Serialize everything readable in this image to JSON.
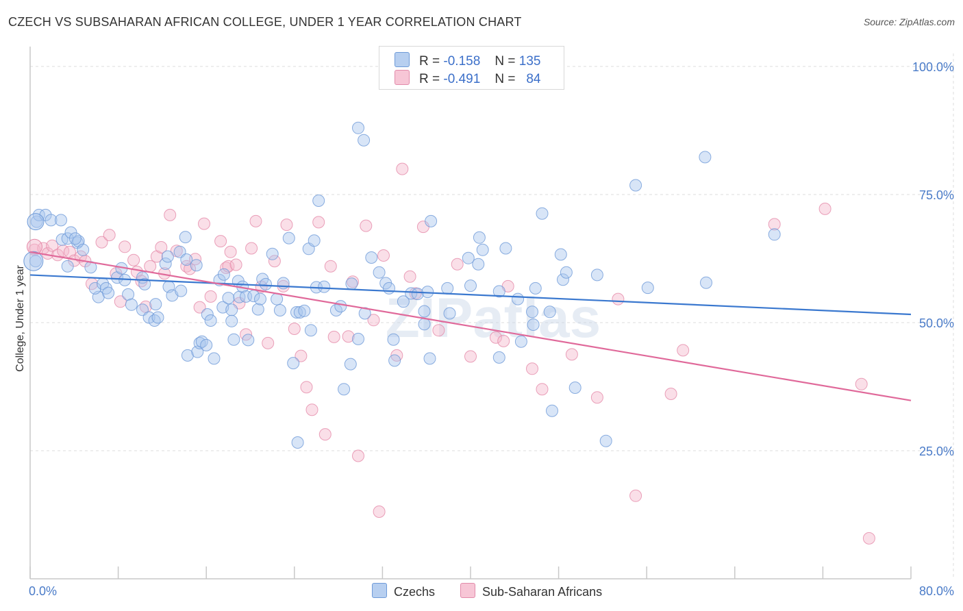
{
  "header": {
    "title": "CZECH VS SUBSAHARAN AFRICAN COLLEGE, UNDER 1 YEAR CORRELATION CHART",
    "source": "Source: ZipAtlas.com"
  },
  "legend": {
    "rows": [
      {
        "r_label": "R =",
        "r_value": "-0.158",
        "n_label": "N =",
        "n_value": "135"
      },
      {
        "r_label": "R =",
        "r_value": "-0.491",
        "n_label": "N =",
        "n_value": "84"
      }
    ]
  },
  "watermark": "ZIPatlas",
  "colors": {
    "czech": "#4a86d4",
    "czech_fill": "#a9c6ee",
    "african": "#e06b94",
    "african_fill": "#f4b8cc",
    "tick": "#4a7bc8"
  },
  "chart_data": {
    "type": "scatter",
    "title": "CZECH VS SUBSAHARAN AFRICAN COLLEGE, UNDER 1 YEAR CORRELATION CHART",
    "xlabel": "",
    "ylabel": "College, Under 1 year",
    "xlim": [
      0,
      80
    ],
    "ylim": [
      0,
      105
    ],
    "x_tick_labels": [
      "0.0%",
      "80.0%"
    ],
    "y_ticks": [
      25,
      50,
      75,
      100
    ],
    "y_tick_labels": [
      "25.0%",
      "50.0%",
      "75.0%",
      "100.0%"
    ],
    "grid": true,
    "legend_position": "bottom",
    "series": [
      {
        "name": "Czechs",
        "color": "#4a86d4",
        "trend": {
          "x": [
            0,
            80
          ],
          "y": [
            59.3,
            51.6
          ]
        },
        "points": [
          [
            0.6,
            69.7
          ],
          [
            0.8,
            71.0
          ],
          [
            1.4,
            71.0
          ],
          [
            1.9,
            70.0
          ],
          [
            2.8,
            70.0
          ],
          [
            2.9,
            66.2
          ],
          [
            3.4,
            66.4
          ],
          [
            3.7,
            67.6
          ],
          [
            4.3,
            65.6
          ],
          [
            4.4,
            65.9
          ],
          [
            3.4,
            61.0
          ],
          [
            4.1,
            66.4
          ],
          [
            4.8,
            64.2
          ],
          [
            5.5,
            60.8
          ],
          [
            6.2,
            55.0
          ],
          [
            5.9,
            56.7
          ],
          [
            6.6,
            57.6
          ],
          [
            6.9,
            56.7
          ],
          [
            7.1,
            55.8
          ],
          [
            7.9,
            58.8
          ],
          [
            8.3,
            60.6
          ],
          [
            8.6,
            58.3
          ],
          [
            8.9,
            55.5
          ],
          [
            9.2,
            53.5
          ],
          [
            10.2,
            58.8
          ],
          [
            10.4,
            57.5
          ],
          [
            10.2,
            52.5
          ],
          [
            10.8,
            51.0
          ],
          [
            11.3,
            50.4
          ],
          [
            11.4,
            53.6
          ],
          [
            11.6,
            51.0
          ],
          [
            12.3,
            61.5
          ],
          [
            12.5,
            62.9
          ],
          [
            12.6,
            57.0
          ],
          [
            12.9,
            55.3
          ],
          [
            13.6,
            63.8
          ],
          [
            13.7,
            56.2
          ],
          [
            14.2,
            62.3
          ],
          [
            14.3,
            43.6
          ],
          [
            14.1,
            66.7
          ],
          [
            15.1,
            61.2
          ],
          [
            15.2,
            44.3
          ],
          [
            15.4,
            46.0
          ],
          [
            15.6,
            46.3
          ],
          [
            16.0,
            45.6
          ],
          [
            16.1,
            51.6
          ],
          [
            16.4,
            50.4
          ],
          [
            16.7,
            43.0
          ],
          [
            17.2,
            58.3
          ],
          [
            17.5,
            53.0
          ],
          [
            17.6,
            59.4
          ],
          [
            18.0,
            54.8
          ],
          [
            18.3,
            52.5
          ],
          [
            18.3,
            50.3
          ],
          [
            18.5,
            46.7
          ],
          [
            18.9,
            58.1
          ],
          [
            19.0,
            55.0
          ],
          [
            19.3,
            57.0
          ],
          [
            19.6,
            55.1
          ],
          [
            19.8,
            46.6
          ],
          [
            20.3,
            55.2
          ],
          [
            20.7,
            52.6
          ],
          [
            20.9,
            54.6
          ],
          [
            21.1,
            58.5
          ],
          [
            21.4,
            57.5
          ],
          [
            22.0,
            63.4
          ],
          [
            22.4,
            54.6
          ],
          [
            22.7,
            52.4
          ],
          [
            23.0,
            57.7
          ],
          [
            23.5,
            66.5
          ],
          [
            23.9,
            42.1
          ],
          [
            24.2,
            52.0
          ],
          [
            24.5,
            52.0
          ],
          [
            24.3,
            26.6
          ],
          [
            24.9,
            52.3
          ],
          [
            25.3,
            64.4
          ],
          [
            25.5,
            48.5
          ],
          [
            25.8,
            66.0
          ],
          [
            26.0,
            56.9
          ],
          [
            26.2,
            73.8
          ],
          [
            26.7,
            57.0
          ],
          [
            27.8,
            52.4
          ],
          [
            28.2,
            53.2
          ],
          [
            28.5,
            37.0
          ],
          [
            29.2,
            57.6
          ],
          [
            29.8,
            88.0
          ],
          [
            30.3,
            85.6
          ],
          [
            29.1,
            41.9
          ],
          [
            29.8,
            46.8
          ],
          [
            30.4,
            51.8
          ],
          [
            31.0,
            62.7
          ],
          [
            31.7,
            59.8
          ],
          [
            32.3,
            57.7
          ],
          [
            32.6,
            56.7
          ],
          [
            33.0,
            46.7
          ],
          [
            33.1,
            42.6
          ],
          [
            33.9,
            54.1
          ],
          [
            34.6,
            55.7
          ],
          [
            35.2,
            55.6
          ],
          [
            35.8,
            52.2
          ],
          [
            35.8,
            49.7
          ],
          [
            36.4,
            69.8
          ],
          [
            36.1,
            56.0
          ],
          [
            36.3,
            43.0
          ],
          [
            37.9,
            56.7
          ],
          [
            38.1,
            51.8
          ],
          [
            39.8,
            62.6
          ],
          [
            40.0,
            57.2
          ],
          [
            40.7,
            61.4
          ],
          [
            41.1,
            64.2
          ],
          [
            40.8,
            66.6
          ],
          [
            42.6,
            56.1
          ],
          [
            42.6,
            43.2
          ],
          [
            43.2,
            64.5
          ],
          [
            44.3,
            54.6
          ],
          [
            44.6,
            46.3
          ],
          [
            45.6,
            52.1
          ],
          [
            45.7,
            49.6
          ],
          [
            45.9,
            56.7
          ],
          [
            46.5,
            71.3
          ],
          [
            47.2,
            52.1
          ],
          [
            47.4,
            32.8
          ],
          [
            48.2,
            63.3
          ],
          [
            48.4,
            58.4
          ],
          [
            48.7,
            59.8
          ],
          [
            49.5,
            37.3
          ],
          [
            51.5,
            59.3
          ],
          [
            52.3,
            26.9
          ],
          [
            55.0,
            76.8
          ],
          [
            56.1,
            56.8
          ],
          [
            61.3,
            82.3
          ],
          [
            61.4,
            57.8
          ],
          [
            67.6,
            67.2
          ],
          [
            0.5,
            62.0
          ]
        ]
      },
      {
        "name": "Sub-Saharan Africans",
        "color": "#e06b94",
        "trend": {
          "x": [
            0,
            80
          ],
          "y": [
            63.8,
            34.8
          ]
        },
        "points": [
          [
            0.4,
            64.2
          ],
          [
            1.2,
            64.5
          ],
          [
            1.6,
            63.5
          ],
          [
            2.0,
            65.0
          ],
          [
            2.5,
            63.2
          ],
          [
            3.0,
            64.0
          ],
          [
            3.6,
            63.8
          ],
          [
            4.0,
            62.1
          ],
          [
            4.6,
            62.9
          ],
          [
            5.0,
            62.0
          ],
          [
            5.6,
            57.6
          ],
          [
            6.5,
            65.7
          ],
          [
            7.2,
            67.1
          ],
          [
            7.8,
            59.6
          ],
          [
            8.2,
            54.1
          ],
          [
            8.6,
            64.8
          ],
          [
            9.4,
            62.2
          ],
          [
            9.7,
            59.9
          ],
          [
            10.1,
            58.1
          ],
          [
            10.5,
            53.1
          ],
          [
            10.9,
            61.0
          ],
          [
            11.5,
            62.9
          ],
          [
            11.9,
            64.7
          ],
          [
            12.2,
            59.6
          ],
          [
            12.7,
            71.0
          ],
          [
            13.3,
            64.0
          ],
          [
            14.2,
            61.0
          ],
          [
            14.5,
            60.5
          ],
          [
            15.0,
            62.4
          ],
          [
            15.4,
            53.0
          ],
          [
            15.8,
            69.3
          ],
          [
            16.4,
            55.1
          ],
          [
            17.3,
            65.9
          ],
          [
            17.8,
            60.7
          ],
          [
            18.0,
            61.0
          ],
          [
            18.2,
            63.8
          ],
          [
            18.7,
            61.3
          ],
          [
            19.0,
            53.8
          ],
          [
            19.6,
            47.7
          ],
          [
            20.1,
            64.5
          ],
          [
            20.5,
            69.8
          ],
          [
            21.0,
            57.0
          ],
          [
            21.6,
            46.0
          ],
          [
            22.2,
            62.0
          ],
          [
            23.0,
            57.1
          ],
          [
            23.3,
            69.1
          ],
          [
            24.0,
            48.8
          ],
          [
            24.6,
            43.5
          ],
          [
            25.1,
            37.4
          ],
          [
            25.6,
            33.0
          ],
          [
            26.2,
            69.6
          ],
          [
            26.8,
            28.2
          ],
          [
            27.3,
            61.0
          ],
          [
            27.6,
            47.2
          ],
          [
            28.9,
            47.3
          ],
          [
            29.3,
            58.0
          ],
          [
            29.8,
            24.0
          ],
          [
            30.5,
            68.9
          ],
          [
            31.2,
            50.5
          ],
          [
            31.7,
            13.1
          ],
          [
            32.1,
            63.1
          ],
          [
            33.3,
            43.6
          ],
          [
            33.8,
            80.0
          ],
          [
            34.5,
            59.0
          ],
          [
            35.0,
            55.7
          ],
          [
            35.7,
            68.7
          ],
          [
            37.1,
            48.5
          ],
          [
            38.8,
            61.4
          ],
          [
            40.0,
            43.4
          ],
          [
            42.3,
            47.1
          ],
          [
            43.0,
            46.4
          ],
          [
            43.4,
            57.1
          ],
          [
            45.6,
            41.0
          ],
          [
            46.5,
            37.0
          ],
          [
            49.2,
            43.8
          ],
          [
            51.5,
            35.4
          ],
          [
            53.4,
            54.6
          ],
          [
            55.0,
            16.2
          ],
          [
            58.2,
            36.1
          ],
          [
            59.3,
            44.6
          ],
          [
            67.6,
            69.2
          ],
          [
            72.2,
            72.2
          ],
          [
            76.2,
            7.9
          ],
          [
            75.5,
            38.0
          ]
        ]
      }
    ]
  },
  "bottom_legend": [
    {
      "label": "Czechs"
    },
    {
      "label": "Sub-Saharan Africans"
    }
  ]
}
